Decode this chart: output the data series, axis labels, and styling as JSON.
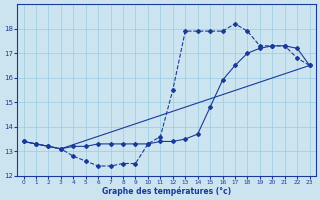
{
  "bg_color": "#cce4f0",
  "grid_color": "#99cce0",
  "line_color": "#1a3a9a",
  "xlabel": "Graphe des températures (°c)",
  "xlim": [
    -0.5,
    23.5
  ],
  "ylim": [
    12,
    19
  ],
  "xticks": [
    0,
    1,
    2,
    3,
    4,
    5,
    6,
    7,
    8,
    9,
    10,
    11,
    12,
    13,
    14,
    15,
    16,
    17,
    18,
    19,
    20,
    21,
    22,
    23
  ],
  "yticks": [
    12,
    13,
    14,
    15,
    16,
    17,
    18
  ],
  "curve1_x": [
    0,
    1,
    2,
    3,
    4,
    5,
    6,
    7,
    8,
    9,
    10,
    11,
    12,
    13,
    14,
    15,
    16,
    17,
    18,
    19,
    20,
    21,
    22,
    23
  ],
  "curve1_y": [
    13.4,
    13.3,
    13.2,
    13.1,
    12.8,
    12.6,
    12.4,
    12.4,
    12.5,
    12.5,
    13.3,
    13.6,
    15.5,
    17.9,
    17.9,
    17.9,
    17.9,
    18.2,
    17.9,
    17.3,
    17.3,
    17.3,
    16.8,
    16.5
  ],
  "curve2_x": [
    0,
    3,
    23
  ],
  "curve2_y": [
    13.4,
    13.1,
    16.5
  ],
  "curve3_x": [
    0,
    1,
    2,
    3,
    4,
    5,
    6,
    7,
    8,
    9,
    10,
    11,
    12,
    13,
    14,
    15,
    16,
    17,
    18,
    19,
    20,
    21,
    22,
    23
  ],
  "curve3_y": [
    13.4,
    13.3,
    13.2,
    13.1,
    13.2,
    13.2,
    13.3,
    13.3,
    13.3,
    13.3,
    13.3,
    13.4,
    13.4,
    13.5,
    13.7,
    14.8,
    15.9,
    16.5,
    17.0,
    17.2,
    17.3,
    17.3,
    17.2,
    16.5
  ]
}
